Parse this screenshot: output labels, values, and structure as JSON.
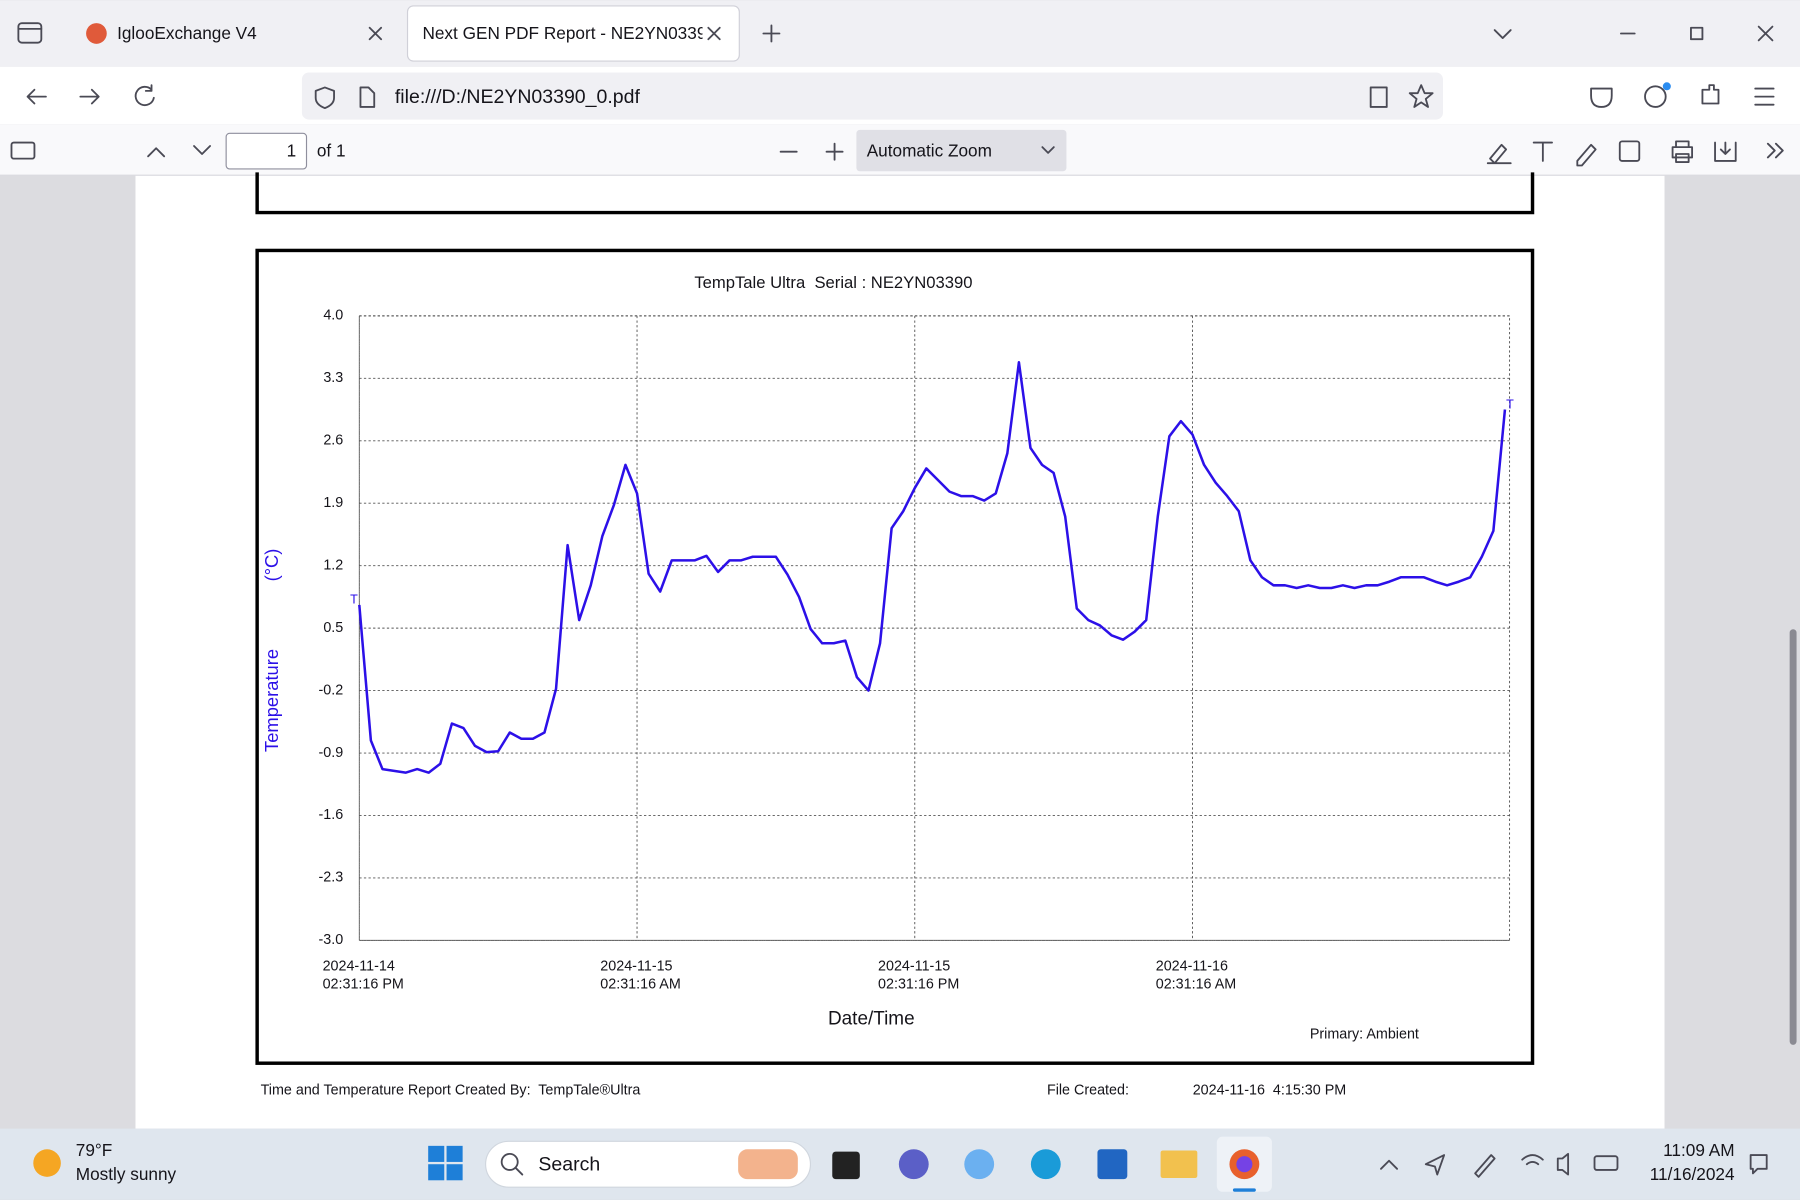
{
  "browser": {
    "tabs": [
      "IglooExchange V4",
      "Next GEN PDF Report - NE2YN0339"
    ],
    "url": "file:///D:/NE2YN03390_0.pdf"
  },
  "pdf_toolbar": {
    "page": "1",
    "page_count": "of 1",
    "zoom": "Automatic Zoom"
  },
  "chart_data": {
    "type": "line",
    "title": "TempTale Ultra  Serial : NE2YN03390",
    "y_label": "Temperature",
    "y_unit": "(°C)",
    "x_label": "Date/Time",
    "trip_markers": [
      "T",
      "T"
    ],
    "grid": true,
    "ylim": [
      -3,
      4
    ],
    "yticks": [
      {
        "value": -3,
        "label": "-3.0"
      },
      -2.3,
      -1.6,
      -0.9,
      -0.2,
      0.5,
      1.2,
      1.9,
      2.6,
      3.3,
      {
        "value": 4,
        "label": "4.0"
      }
    ],
    "xlim": [
      "2024-11-14T14:31:16",
      "2024-11-16T16:13:16"
    ],
    "xticks": [
      {
        "value": "2024-11-14T14:31:16",
        "label": [
          "2024-11-14",
          "02:31:16 PM"
        ]
      },
      {
        "value": "2024-11-15T02:31:16",
        "label": [
          "2024-11-15",
          "02:31:16 AM"
        ]
      },
      {
        "value": "2024-11-15T14:31:16",
        "label": [
          "2024-11-15",
          "02:31:16 PM"
        ]
      },
      {
        "value": "2024-11-16T02:31:16",
        "label": [
          "2024-11-16",
          "02:31:16 AM"
        ]
      }
    ],
    "x": [
      "2024-11-14T14:31:16",
      "2024-11-14T15:01:16",
      "2024-11-14T15:31:16",
      "2024-11-14T16:01:16",
      "2024-11-14T16:31:16",
      "2024-11-14T17:01:16",
      "2024-11-14T17:31:16",
      "2024-11-14T18:01:16",
      "2024-11-14T18:31:16",
      "2024-11-14T19:01:16",
      "2024-11-14T19:31:16",
      "2024-11-14T20:01:16",
      "2024-11-14T20:31:16",
      "2024-11-14T21:01:16",
      "2024-11-14T21:31:16",
      "2024-11-14T22:01:16",
      "2024-11-14T22:31:16",
      "2024-11-14T23:01:16",
      "2024-11-14T23:31:16",
      "2024-11-15T00:01:16",
      "2024-11-15T00:31:16",
      "2024-11-15T01:01:16",
      "2024-11-15T01:31:16",
      "2024-11-15T02:01:16",
      "2024-11-15T02:31:16",
      "2024-11-15T03:01:16",
      "2024-11-15T03:31:16",
      "2024-11-15T04:01:16",
      "2024-11-15T04:31:16",
      "2024-11-15T05:01:16",
      "2024-11-15T05:31:16",
      "2024-11-15T06:01:16",
      "2024-11-15T06:31:16",
      "2024-11-15T07:01:16",
      "2024-11-15T07:31:16",
      "2024-11-15T08:01:16",
      "2024-11-15T08:31:16",
      "2024-11-15T09:01:16",
      "2024-11-15T09:31:16",
      "2024-11-15T10:01:16",
      "2024-11-15T10:31:16",
      "2024-11-15T11:01:16",
      "2024-11-15T11:31:16",
      "2024-11-15T12:01:16",
      "2024-11-15T12:31:16",
      "2024-11-15T13:01:16",
      "2024-11-15T13:31:16",
      "2024-11-15T14:01:16",
      "2024-11-15T14:31:16",
      "2024-11-15T15:01:16",
      "2024-11-15T15:31:16",
      "2024-11-15T16:01:16",
      "2024-11-15T16:31:16",
      "2024-11-15T17:01:16",
      "2024-11-15T17:31:16",
      "2024-11-15T18:01:16",
      "2024-11-15T18:31:16",
      "2024-11-15T19:01:16",
      "2024-11-15T19:31:16",
      "2024-11-15T20:01:16",
      "2024-11-15T20:31:16",
      "2024-11-15T21:01:16",
      "2024-11-15T21:31:16",
      "2024-11-15T22:01:16",
      "2024-11-15T22:31:16",
      "2024-11-15T23:01:16",
      "2024-11-15T23:31:16",
      "2024-11-16T00:01:16",
      "2024-11-16T00:31:16",
      "2024-11-16T01:01:16",
      "2024-11-16T01:31:16",
      "2024-11-16T02:01:16",
      "2024-11-16T02:31:16",
      "2024-11-16T03:01:16",
      "2024-11-16T03:31:16",
      "2024-11-16T04:01:16",
      "2024-11-16T04:31:16",
      "2024-11-16T05:01:16",
      "2024-11-16T05:31:16",
      "2024-11-16T06:01:16",
      "2024-11-16T06:31:16",
      "2024-11-16T07:01:16",
      "2024-11-16T07:31:16",
      "2024-11-16T08:01:16",
      "2024-11-16T08:31:16",
      "2024-11-16T09:01:16",
      "2024-11-16T09:31:16",
      "2024-11-16T10:01:16",
      "2024-11-16T10:31:16",
      "2024-11-16T11:01:16",
      "2024-11-16T11:31:16",
      "2024-11-16T12:01:16",
      "2024-11-16T12:31:16",
      "2024-11-16T13:01:16",
      "2024-11-16T13:31:16",
      "2024-11-16T14:01:16",
      "2024-11-16T14:31:16",
      "2024-11-16T15:01:16",
      "2024-11-16T15:31:16",
      "2024-11-16T16:01:16"
    ],
    "series": [
      {
        "name": "Primary: Ambient",
        "color": "#2c10e8",
        "values": [
          0.76,
          -0.76,
          -1.08,
          -1.1,
          -1.12,
          -1.08,
          -1.12,
          -1.02,
          -0.57,
          -0.62,
          -0.82,
          -0.89,
          -0.88,
          -0.67,
          -0.74,
          -0.74,
          -0.67,
          -0.18,
          1.43,
          0.59,
          0.98,
          1.53,
          1.88,
          2.33,
          2.01,
          1.11,
          0.91,
          1.26,
          1.26,
          1.26,
          1.31,
          1.13,
          1.26,
          1.26,
          1.3,
          1.3,
          1.3,
          1.1,
          0.85,
          0.49,
          0.33,
          0.33,
          0.36,
          -0.05,
          -0.2,
          0.33,
          1.62,
          1.81,
          2.07,
          2.29,
          2.16,
          2.03,
          1.98,
          1.98,
          1.93,
          2.01,
          2.46,
          3.48,
          2.52,
          2.33,
          2.24,
          1.75,
          0.72,
          0.59,
          0.53,
          0.42,
          0.37,
          0.46,
          0.59,
          1.75,
          2.65,
          2.82,
          2.67,
          2.33,
          2.13,
          1.98,
          1.81,
          1.26,
          1.07,
          0.98,
          0.98,
          0.95,
          0.98,
          0.95,
          0.95,
          0.98,
          0.95,
          0.98,
          0.98,
          1.02,
          1.07,
          1.07,
          1.07,
          1.02,
          0.98,
          1.02,
          1.07,
          1.3,
          1.59,
          2.95
        ]
      }
    ]
  },
  "report": {
    "created_by": "Time and Temperature Report Created By:  TempTale®Ultra",
    "file_created_label": "File Created:",
    "file_created": "2024-11-16  4:15:30 PM"
  },
  "taskbar": {
    "temperature": "79°F",
    "weather": "Mostly sunny",
    "search": "Search",
    "time": "11:09 AM",
    "date": "11/16/2024"
  }
}
